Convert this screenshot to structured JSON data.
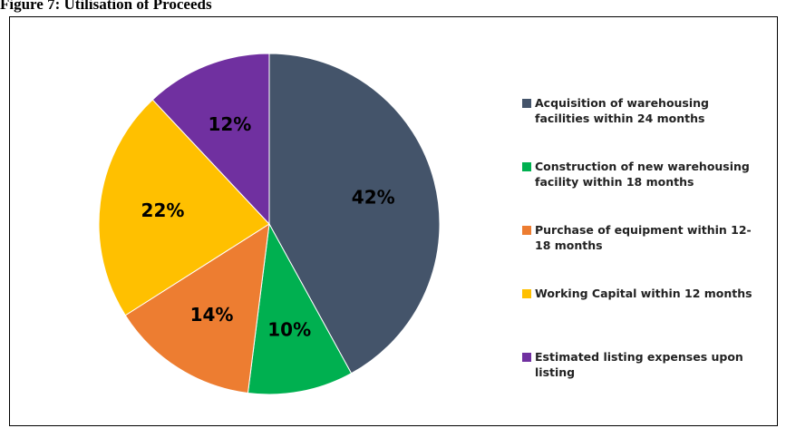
{
  "chart_data": {
    "type": "pie",
    "title": "Figure 7: Utilisation of Proceeds",
    "categories": [
      "Acquisition of warehousing facilities within 24 months",
      "Construction of new warehousing facility within 18 months",
      "Purchase of equipment within 12-18 months",
      "Working Capital within 12 months",
      "Estimated listing expenses upon listing"
    ],
    "values": [
      42,
      10,
      14,
      22,
      12
    ],
    "value_labels": [
      "42%",
      "10%",
      "14%",
      "22%",
      "12%"
    ],
    "colors": [
      "#44546a",
      "#00b050",
      "#ed7d31",
      "#ffc000",
      "#7030a0"
    ],
    "legend": "right"
  }
}
